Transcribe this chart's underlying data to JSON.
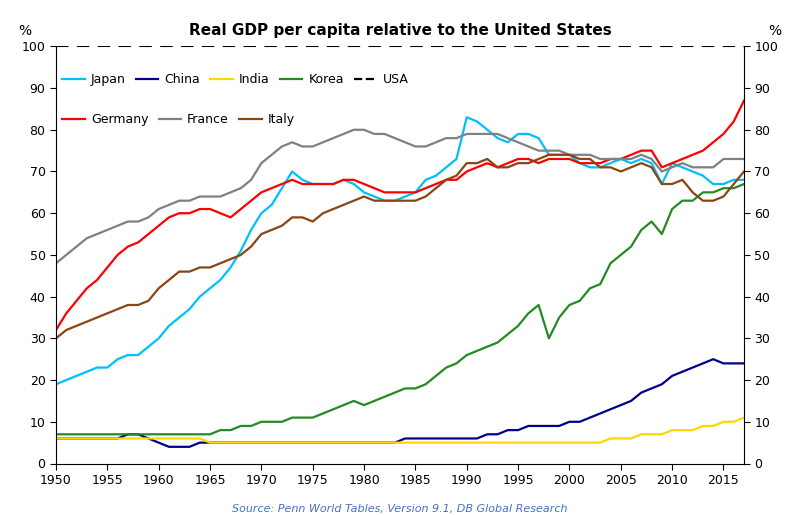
{
  "title": "Real GDP per capita relative to the United States",
  "source": "Source: Penn World Tables, Version 9.1, DB Global Research",
  "ylabel_left": "%",
  "ylabel_right": "%",
  "xlim": [
    1950,
    2017
  ],
  "ylim": [
    0,
    100
  ],
  "yticks": [
    0,
    10,
    20,
    30,
    40,
    50,
    60,
    70,
    80,
    90,
    100
  ],
  "xticks": [
    1950,
    1955,
    1960,
    1965,
    1970,
    1975,
    1980,
    1985,
    1990,
    1995,
    2000,
    2005,
    2010,
    2015
  ],
  "series": {
    "Japan": {
      "color": "#00BFFF",
      "years": [
        1950,
        1951,
        1952,
        1953,
        1954,
        1955,
        1956,
        1957,
        1958,
        1959,
        1960,
        1961,
        1962,
        1963,
        1964,
        1965,
        1966,
        1967,
        1968,
        1969,
        1970,
        1971,
        1972,
        1973,
        1974,
        1975,
        1976,
        1977,
        1978,
        1979,
        1980,
        1981,
        1982,
        1983,
        1984,
        1985,
        1986,
        1987,
        1988,
        1989,
        1990,
        1991,
        1992,
        1993,
        1994,
        1995,
        1996,
        1997,
        1998,
        1999,
        2000,
        2001,
        2002,
        2003,
        2004,
        2005,
        2006,
        2007,
        2008,
        2009,
        2010,
        2011,
        2012,
        2013,
        2014,
        2015,
        2016,
        2017
      ],
      "values": [
        19,
        20,
        21,
        22,
        23,
        23,
        25,
        26,
        26,
        28,
        30,
        33,
        35,
        37,
        40,
        42,
        44,
        47,
        51,
        56,
        60,
        62,
        66,
        70,
        68,
        67,
        67,
        67,
        68,
        67,
        65,
        64,
        63,
        63,
        64,
        65,
        68,
        69,
        71,
        73,
        83,
        82,
        80,
        78,
        77,
        79,
        79,
        78,
        74,
        74,
        74,
        72,
        71,
        71,
        72,
        73,
        72,
        73,
        72,
        67,
        72,
        71,
        70,
        69,
        67,
        67,
        68,
        68
      ]
    },
    "China": {
      "color": "#00008B",
      "years": [
        1950,
        1951,
        1952,
        1953,
        1954,
        1955,
        1956,
        1957,
        1958,
        1959,
        1960,
        1961,
        1962,
        1963,
        1964,
        1965,
        1966,
        1967,
        1968,
        1969,
        1970,
        1971,
        1972,
        1973,
        1974,
        1975,
        1976,
        1977,
        1978,
        1979,
        1980,
        1981,
        1982,
        1983,
        1984,
        1985,
        1986,
        1987,
        1988,
        1989,
        1990,
        1991,
        1992,
        1993,
        1994,
        1995,
        1996,
        1997,
        1998,
        1999,
        2000,
        2001,
        2002,
        2003,
        2004,
        2005,
        2006,
        2007,
        2008,
        2009,
        2010,
        2011,
        2012,
        2013,
        2014,
        2015,
        2016,
        2017
      ],
      "values": [
        6,
        6,
        6,
        6,
        6,
        6,
        6,
        7,
        7,
        6,
        5,
        4,
        4,
        4,
        5,
        5,
        5,
        5,
        5,
        5,
        5,
        5,
        5,
        5,
        5,
        5,
        5,
        5,
        5,
        5,
        5,
        5,
        5,
        5,
        6,
        6,
        6,
        6,
        6,
        6,
        6,
        6,
        7,
        7,
        8,
        8,
        9,
        9,
        9,
        9,
        10,
        10,
        11,
        12,
        13,
        14,
        15,
        17,
        18,
        19,
        21,
        22,
        23,
        24,
        25,
        24,
        24,
        24
      ]
    },
    "India": {
      "color": "#FFD700",
      "years": [
        1950,
        1951,
        1952,
        1953,
        1954,
        1955,
        1956,
        1957,
        1958,
        1959,
        1960,
        1961,
        1962,
        1963,
        1964,
        1965,
        1966,
        1967,
        1968,
        1969,
        1970,
        1971,
        1972,
        1973,
        1974,
        1975,
        1976,
        1977,
        1978,
        1979,
        1980,
        1981,
        1982,
        1983,
        1984,
        1985,
        1986,
        1987,
        1988,
        1989,
        1990,
        1991,
        1992,
        1993,
        1994,
        1995,
        1996,
        1997,
        1998,
        1999,
        2000,
        2001,
        2002,
        2003,
        2004,
        2005,
        2006,
        2007,
        2008,
        2009,
        2010,
        2011,
        2012,
        2013,
        2014,
        2015,
        2016,
        2017
      ],
      "values": [
        6,
        6,
        6,
        6,
        6,
        6,
        6,
        6,
        6,
        6,
        6,
        6,
        6,
        6,
        6,
        5,
        5,
        5,
        5,
        5,
        5,
        5,
        5,
        5,
        5,
        5,
        5,
        5,
        5,
        5,
        5,
        5,
        5,
        5,
        5,
        5,
        5,
        5,
        5,
        5,
        5,
        5,
        5,
        5,
        5,
        5,
        5,
        5,
        5,
        5,
        5,
        5,
        5,
        5,
        6,
        6,
        6,
        7,
        7,
        7,
        8,
        8,
        8,
        9,
        9,
        10,
        10,
        11
      ]
    },
    "Korea": {
      "color": "#228B22",
      "years": [
        1950,
        1951,
        1952,
        1953,
        1954,
        1955,
        1956,
        1957,
        1958,
        1959,
        1960,
        1961,
        1962,
        1963,
        1964,
        1965,
        1966,
        1967,
        1968,
        1969,
        1970,
        1971,
        1972,
        1973,
        1974,
        1975,
        1976,
        1977,
        1978,
        1979,
        1980,
        1981,
        1982,
        1983,
        1984,
        1985,
        1986,
        1987,
        1988,
        1989,
        1990,
        1991,
        1992,
        1993,
        1994,
        1995,
        1996,
        1997,
        1998,
        1999,
        2000,
        2001,
        2002,
        2003,
        2004,
        2005,
        2006,
        2007,
        2008,
        2009,
        2010,
        2011,
        2012,
        2013,
        2014,
        2015,
        2016,
        2017
      ],
      "values": [
        7,
        7,
        7,
        7,
        7,
        7,
        7,
        7,
        7,
        7,
        7,
        7,
        7,
        7,
        7,
        7,
        8,
        8,
        9,
        9,
        10,
        10,
        10,
        11,
        11,
        11,
        12,
        13,
        14,
        15,
        14,
        15,
        16,
        17,
        18,
        18,
        19,
        21,
        23,
        24,
        26,
        27,
        28,
        29,
        31,
        33,
        36,
        38,
        30,
        35,
        38,
        39,
        42,
        43,
        48,
        50,
        52,
        56,
        58,
        55,
        61,
        63,
        63,
        65,
        65,
        66,
        66,
        67
      ]
    },
    "Germany": {
      "color": "#FF0000",
      "years": [
        1950,
        1951,
        1952,
        1953,
        1954,
        1955,
        1956,
        1957,
        1958,
        1959,
        1960,
        1961,
        1962,
        1963,
        1964,
        1965,
        1966,
        1967,
        1968,
        1969,
        1970,
        1971,
        1972,
        1973,
        1974,
        1975,
        1976,
        1977,
        1978,
        1979,
        1980,
        1981,
        1982,
        1983,
        1984,
        1985,
        1986,
        1987,
        1988,
        1989,
        1990,
        1991,
        1992,
        1993,
        1994,
        1995,
        1996,
        1997,
        1998,
        1999,
        2000,
        2001,
        2002,
        2003,
        2004,
        2005,
        2006,
        2007,
        2008,
        2009,
        2010,
        2011,
        2012,
        2013,
        2014,
        2015,
        2016,
        2017
      ],
      "values": [
        32,
        36,
        39,
        42,
        44,
        47,
        50,
        52,
        53,
        55,
        57,
        59,
        60,
        60,
        61,
        61,
        60,
        59,
        61,
        63,
        65,
        66,
        67,
        68,
        67,
        67,
        67,
        67,
        68,
        68,
        67,
        66,
        65,
        65,
        65,
        65,
        66,
        67,
        68,
        68,
        70,
        71,
        72,
        71,
        72,
        73,
        73,
        72,
        73,
        73,
        73,
        72,
        72,
        72,
        73,
        73,
        74,
        75,
        75,
        71,
        72,
        73,
        74,
        75,
        77,
        79,
        82,
        87
      ]
    },
    "France": {
      "color": "#808080",
      "years": [
        1950,
        1951,
        1952,
        1953,
        1954,
        1955,
        1956,
        1957,
        1958,
        1959,
        1960,
        1961,
        1962,
        1963,
        1964,
        1965,
        1966,
        1967,
        1968,
        1969,
        1970,
        1971,
        1972,
        1973,
        1974,
        1975,
        1976,
        1977,
        1978,
        1979,
        1980,
        1981,
        1982,
        1983,
        1984,
        1985,
        1986,
        1987,
        1988,
        1989,
        1990,
        1991,
        1992,
        1993,
        1994,
        1995,
        1996,
        1997,
        1998,
        1999,
        2000,
        2001,
        2002,
        2003,
        2004,
        2005,
        2006,
        2007,
        2008,
        2009,
        2010,
        2011,
        2012,
        2013,
        2014,
        2015,
        2016,
        2017
      ],
      "values": [
        48,
        50,
        52,
        54,
        55,
        56,
        57,
        58,
        58,
        59,
        61,
        62,
        63,
        63,
        64,
        64,
        64,
        65,
        66,
        68,
        72,
        74,
        76,
        77,
        76,
        76,
        77,
        78,
        79,
        80,
        80,
        79,
        79,
        78,
        77,
        76,
        76,
        77,
        78,
        78,
        79,
        79,
        79,
        79,
        78,
        77,
        76,
        75,
        75,
        75,
        74,
        74,
        74,
        73,
        73,
        73,
        73,
        74,
        73,
        70,
        71,
        72,
        71,
        71,
        71,
        73,
        73,
        73
      ]
    },
    "Italy": {
      "color": "#8B4513",
      "years": [
        1950,
        1951,
        1952,
        1953,
        1954,
        1955,
        1956,
        1957,
        1958,
        1959,
        1960,
        1961,
        1962,
        1963,
        1964,
        1965,
        1966,
        1967,
        1968,
        1969,
        1970,
        1971,
        1972,
        1973,
        1974,
        1975,
        1976,
        1977,
        1978,
        1979,
        1980,
        1981,
        1982,
        1983,
        1984,
        1985,
        1986,
        1987,
        1988,
        1989,
        1990,
        1991,
        1992,
        1993,
        1994,
        1995,
        1996,
        1997,
        1998,
        1999,
        2000,
        2001,
        2002,
        2003,
        2004,
        2005,
        2006,
        2007,
        2008,
        2009,
        2010,
        2011,
        2012,
        2013,
        2014,
        2015,
        2016,
        2017
      ],
      "values": [
        30,
        32,
        33,
        34,
        35,
        36,
        37,
        38,
        38,
        39,
        42,
        44,
        46,
        46,
        47,
        47,
        48,
        49,
        50,
        52,
        55,
        56,
        57,
        59,
        59,
        58,
        60,
        61,
        62,
        63,
        64,
        63,
        63,
        63,
        63,
        63,
        64,
        66,
        68,
        69,
        72,
        72,
        73,
        71,
        71,
        72,
        72,
        73,
        74,
        74,
        74,
        73,
        73,
        71,
        71,
        70,
        71,
        72,
        71,
        67,
        67,
        68,
        65,
        63,
        63,
        64,
        67,
        70
      ]
    }
  },
  "legend_row1": [
    "Japan",
    "China",
    "India",
    "Korea",
    "USA"
  ],
  "legend_row2": [
    "Germany",
    "France",
    "Italy"
  ],
  "legend_colors_row1": [
    "#00BFFF",
    "#00008B",
    "#FFD700",
    "#228B22",
    "black"
  ],
  "legend_colors_row2": [
    "#FF0000",
    "#808080",
    "#8B4513"
  ],
  "legend_styles_row1": [
    "solid",
    "solid",
    "solid",
    "solid",
    "dashed"
  ],
  "legend_styles_row2": [
    "solid",
    "solid",
    "solid"
  ]
}
